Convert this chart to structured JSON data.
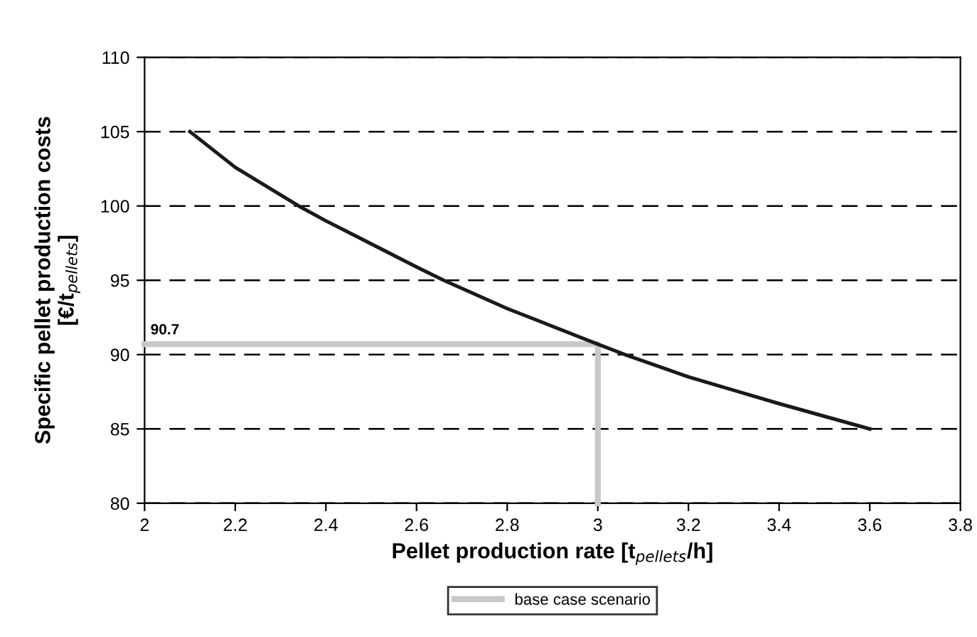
{
  "chart_data": {
    "type": "line",
    "xlabel": "Pellet production rate [t$_{pellets}$/h]",
    "ylabel": "Specific pellet production costs\n[€/t$_{pellets}$]",
    "series": [
      {
        "color": "#1a1a1a",
        "x": [
          2.1,
          2.2,
          2.34,
          2.4,
          2.6,
          2.66,
          2.8,
          3.0,
          3.06,
          3.2,
          3.4,
          3.6
        ],
        "values": [
          105,
          102.6,
          100,
          99,
          95.9,
          95,
          93.1,
          90.7,
          90,
          88.5,
          86.7,
          85
        ]
      },
      {
        "name": "base case scenario",
        "color": "#c8c8c8",
        "x": [
          2,
          3,
          3
        ],
        "values": [
          90.7,
          90.7,
          80
        ]
      }
    ],
    "annotations": [
      {
        "text": "90.7",
        "x": 2,
        "y": 90.7
      }
    ],
    "xlim": [
      2,
      3.8
    ],
    "xticks": [
      2,
      2.2,
      2.4,
      2.6,
      2.8,
      3,
      3.2,
      3.4,
      3.6,
      3.8
    ],
    "ylim": [
      80,
      110
    ],
    "yticks": [
      80,
      85,
      90,
      95,
      100,
      105,
      110
    ],
    "grid": "y",
    "legend": "bottom",
    "marker": "none",
    "line_style": "solid"
  }
}
